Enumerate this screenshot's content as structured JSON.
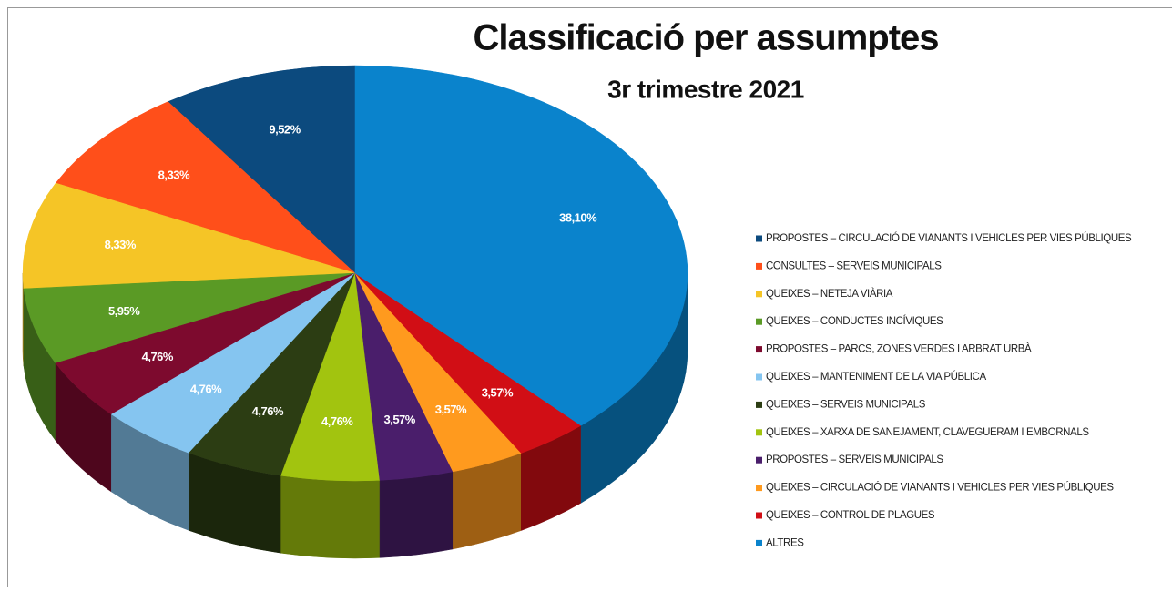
{
  "chart_data": {
    "type": "pie3d",
    "title": "Classificació per assumptes",
    "subtitle": "3r trimestre 2021",
    "categories": [
      "PROPOSTES – CIRCULACIÓ DE VIANANTS I VEHICLES PER VIES PÚBLIQUES",
      "CONSULTES – SERVEIS MUNICIPALS",
      "QUEIXES – NETEJA VIÀRIA",
      "QUEIXES – CONDUCTES INCÍVIQUES",
      "PROPOSTES – PARCS, ZONES VERDES I ARBRAT URBÀ",
      "QUEIXES – MANTENIMENT DE LA VIA PÚBLICA",
      "QUEIXES – SERVEIS MUNICIPALS",
      "QUEIXES – XARXA DE SANEJAMENT, CLAVEGUERAM I EMBORNALS",
      "PROPOSTES – SERVEIS MUNICIPALS",
      "QUEIXES – CIRCULACIÓ DE VIANANTS I VEHICLES PER VIES PÚBLIQUES",
      "QUEIXES – CONTROL DE PLAGUES",
      "ALTRES"
    ],
    "values": [
      9.52,
      8.33,
      8.33,
      5.95,
      4.76,
      4.76,
      4.76,
      4.76,
      3.57,
      3.57,
      3.57,
      38.1
    ],
    "value_labels": [
      "9,52%",
      "8,33%",
      "8,33%",
      "5,95%",
      "4,76%",
      "4,76%",
      "4,76%",
      "4,76%",
      "3,57%",
      "3,57%",
      "3,57%",
      "38,10%"
    ],
    "colors": [
      "#0c4a7e",
      "#ff4f1a",
      "#f5c526",
      "#5a9a25",
      "#7d0a2e",
      "#85c5f0",
      "#2c3d13",
      "#a2c40f",
      "#4a1e6b",
      "#ff9a1e",
      "#d10e15",
      "#0a83cc"
    ]
  }
}
